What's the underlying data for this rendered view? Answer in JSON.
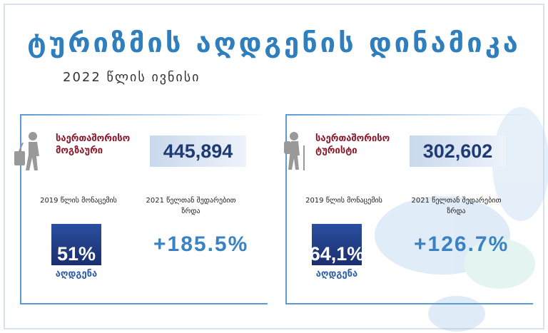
{
  "header": {
    "title": "ტურიზმის აღდგენის დინამიკა",
    "subtitle": "2022 წლის ივნისი"
  },
  "cards": [
    {
      "label": "საერთაშორისო მოგზაური",
      "count": "445,894",
      "recovery_caption": "2019 წლის მონაცემის",
      "recovery": "51%",
      "recovery_label": "აღდგენა",
      "growth_caption": "2021 წელთან შედარებით ზრდა",
      "growth": "+185.5%"
    },
    {
      "label": "საერთაშორისო ტურისტი",
      "count": "302,602",
      "recovery_caption": "2019 წლის მონაცემის",
      "recovery": "64,1%",
      "recovery_label": "აღდგენა",
      "growth_caption": "2021 წელთან შედარებით ზრდა",
      "growth": "+126.7%"
    }
  ]
}
